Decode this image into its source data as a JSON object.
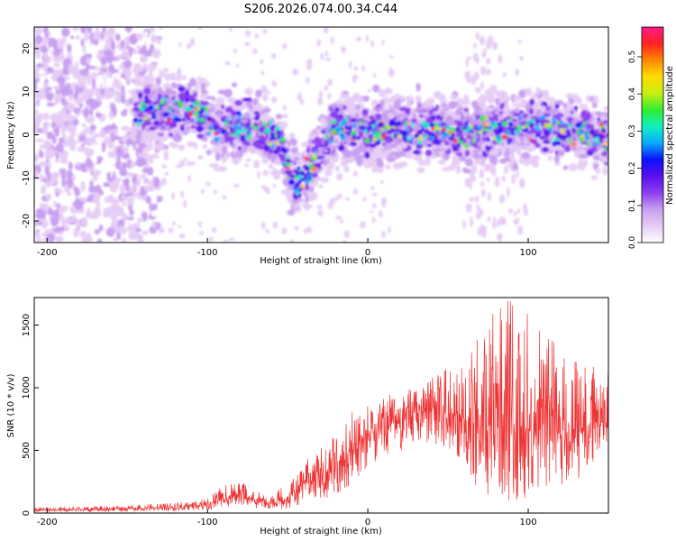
{
  "title": "S206.2026.074.00.34.C44",
  "colors": {
    "snr_line": "#ee3333",
    "colormap": [
      "#ffffff",
      "#e6ccf5",
      "#c79ff0",
      "#8d3ff0",
      "#5b10ee",
      "#0a10ff",
      "#0aaaff",
      "#10f0c0",
      "#30ee30",
      "#c8ee10",
      "#ffdd00",
      "#ff8800",
      "#ff2222",
      "#ff1a88"
    ]
  },
  "chart_data": [
    {
      "type": "heatmap",
      "name": "spectrogram",
      "xlabel": "Height of straight line (km)",
      "ylabel": "Frequency (Hz)",
      "xlim": [
        -208,
        150
      ],
      "ylim": [
        -25,
        25
      ],
      "xticks": [
        -200,
        -100,
        0,
        100
      ],
      "yticks": [
        20,
        10,
        0,
        -10,
        -20
      ],
      "colorbar": {
        "label": "Normalized spectral amplitude",
        "range": [
          0,
          0.58
        ],
        "ticks": [
          "0.0",
          "0.1",
          "0.2",
          "0.3",
          "0.4",
          "0.5"
        ]
      },
      "band_center_hz": [
        [
          -145,
          5
        ],
        [
          -110,
          6
        ],
        [
          -95,
          2
        ],
        [
          -70,
          2
        ],
        [
          -55,
          -2
        ],
        [
          -45,
          -12
        ],
        [
          -35,
          -7
        ],
        [
          -20,
          2
        ],
        [
          0,
          1
        ],
        [
          20,
          1
        ],
        [
          40,
          1
        ],
        [
          60,
          0
        ],
        [
          80,
          1
        ],
        [
          100,
          2
        ],
        [
          120,
          1
        ],
        [
          140,
          0
        ],
        [
          150,
          -1
        ]
      ],
      "band_halfwidth_hz": 4,
      "noisy_region_km": [
        -208,
        -130
      ],
      "residual_noise_km": [
        -130,
        20
      ],
      "sparse_halo_km": [
        60,
        100
      ]
    },
    {
      "type": "line",
      "name": "snr",
      "xlabel": "Height of straight line (km)",
      "ylabel": "SNR (10 * v/v)",
      "xlim": [
        -208,
        150
      ],
      "ylim": [
        0,
        1720
      ],
      "xticks": [
        -200,
        -100,
        0,
        100
      ],
      "yticks": [
        0,
        500,
        1000,
        1500
      ],
      "series": [
        {
          "name": "SNR",
          "envelope": {
            "x": [
              -208,
              -160,
              -120,
              -100,
              -90,
              -80,
              -70,
              -60,
              -50,
              -40,
              -30,
              -20,
              -10,
              0,
              10,
              20,
              30,
              40,
              50,
              60,
              70,
              80,
              90,
              100,
              110,
              120,
              130,
              140,
              150
            ],
            "median": [
              25,
              30,
              45,
              65,
              110,
              150,
              90,
              80,
              110,
              240,
              300,
              380,
              500,
              620,
              680,
              720,
              790,
              830,
              780,
              760,
              720,
              690,
              680,
              660,
              670,
              640,
              650,
              700,
              730
            ],
            "upper": [
              45,
              55,
              80,
              110,
              230,
              260,
              170,
              150,
              230,
              400,
              520,
              620,
              800,
              860,
              920,
              980,
              1000,
              1080,
              1150,
              1250,
              1500,
              1650,
              1720,
              1580,
              1400,
              1350,
              1200,
              1200,
              1150
            ],
            "lower": [
              10,
              10,
              15,
              25,
              40,
              60,
              40,
              30,
              30,
              80,
              100,
              150,
              200,
              380,
              440,
              480,
              520,
              560,
              500,
              380,
              150,
              100,
              100,
              120,
              150,
              200,
              250,
              380,
              450
            ]
          }
        }
      ]
    }
  ]
}
